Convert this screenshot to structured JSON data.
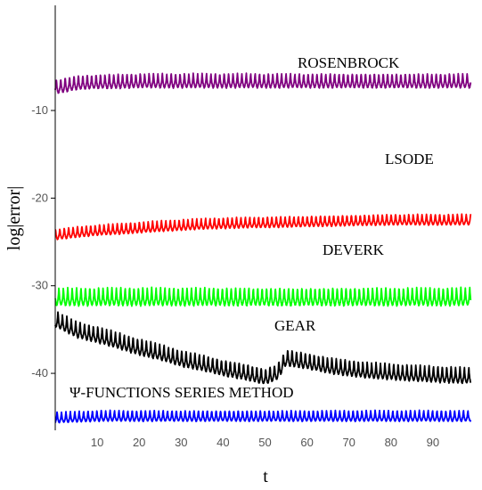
{
  "chart_data": {
    "type": "line",
    "xlabel": "t",
    "ylabel": "log|error|",
    "xlim": [
      0,
      100
    ],
    "ylim": [
      -46.5,
      2
    ],
    "x_ticks": [
      10,
      20,
      30,
      40,
      50,
      60,
      70,
      80,
      90
    ],
    "y_ticks": [
      -10,
      -20,
      -30,
      -40
    ],
    "grid": false,
    "series": [
      {
        "name": "ROSENBROCK",
        "color": "#800080",
        "x": [
          0,
          5,
          10,
          20,
          30,
          40,
          50,
          60,
          70,
          80,
          90,
          99
        ],
        "y": [
          -7.5,
          -7.0,
          -6.9,
          -6.8,
          -6.8,
          -6.8,
          -6.8,
          -6.8,
          -6.8,
          -6.8,
          -6.8,
          -6.8
        ],
        "oscillation_amplitude": 0.8
      },
      {
        "name": "LSODE",
        "color": "#ff0000",
        "x": [
          0,
          5,
          10,
          20,
          30,
          40,
          50,
          60,
          70,
          80,
          90,
          99
        ],
        "y": [
          -24.3,
          -24.0,
          -23.8,
          -23.5,
          -23.2,
          -23.0,
          -22.9,
          -22.8,
          -22.7,
          -22.6,
          -22.6,
          -22.6
        ],
        "oscillation_amplitude": 0.6
      },
      {
        "name": "DEVERK",
        "color": "#00ff00",
        "x": [
          0,
          10,
          20,
          30,
          40,
          50,
          60,
          70,
          80,
          90,
          99
        ],
        "y": [
          -31.5,
          -31.5,
          -31.5,
          -31.5,
          -31.5,
          -31.5,
          -31.5,
          -31.5,
          -31.5,
          -31.5,
          -31.5
        ],
        "oscillation_amplitude": 1.0
      },
      {
        "name": "GEAR",
        "color": "#000000",
        "x": [
          0,
          5,
          10,
          15,
          20,
          25,
          30,
          35,
          40,
          45,
          50,
          53,
          55,
          60,
          65,
          70,
          75,
          80,
          85,
          90,
          95,
          99
        ],
        "y": [
          -34.0,
          -35.2,
          -35.8,
          -36.5,
          -37.2,
          -37.8,
          -38.5,
          -39.0,
          -39.6,
          -40.0,
          -40.6,
          -40.0,
          -38.4,
          -38.8,
          -39.3,
          -39.6,
          -39.9,
          -40.0,
          -40.2,
          -40.3,
          -40.4,
          -40.5
        ],
        "oscillation_amplitude": 0.9
      },
      {
        "name": "Ψ-FUNCTIONS SERIES METHOD",
        "color": "#0000ff",
        "x": [
          0,
          10,
          20,
          30,
          40,
          50,
          60,
          70,
          80,
          90,
          99
        ],
        "y": [
          -45.2,
          -45.0,
          -45.0,
          -45.0,
          -45.0,
          -45.0,
          -45.0,
          -45.0,
          -45.0,
          -45.0,
          -45.0
        ],
        "oscillation_amplitude": 0.6
      }
    ]
  }
}
